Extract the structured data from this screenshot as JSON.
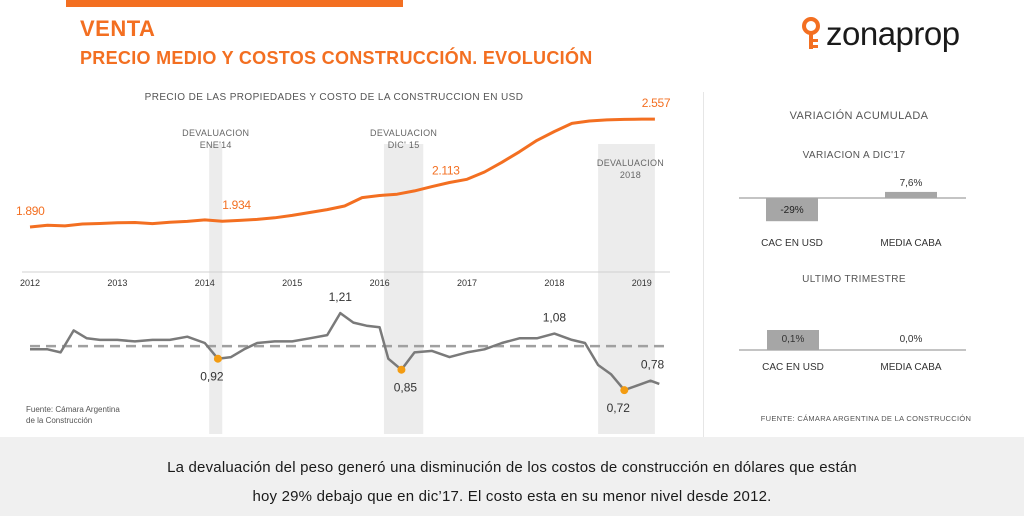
{
  "header": {
    "title": "VENTA",
    "subtitle": "PRECIO MEDIO Y COSTOS CONSTRUCCIÓN. EVOLUCIÓN"
  },
  "logo": {
    "text": "zonaprop",
    "icon": "zonaprop-key-icon",
    "color": "#f36f21"
  },
  "colors": {
    "accent": "#f36f21",
    "line_gray": "#7a7a7a",
    "band": "#ececec",
    "bar_gray": "#a6a6a6"
  },
  "chart_data": [
    {
      "type": "line",
      "title": "PRECIO DE LAS PROPIEDADES Y COSTO DE LA CONSTRUCCION EN USD",
      "x_ticks": [
        "2012",
        "2013",
        "2014",
        "2015",
        "2016",
        "2017",
        "2018",
        "2019"
      ],
      "xlim": [
        2012,
        2019.3
      ],
      "ylim": [
        1600,
        2650
      ],
      "grid": false,
      "series": [
        {
          "x": [
            2012.0,
            2012.2,
            2012.4,
            2012.6,
            2012.8,
            2013.0,
            2013.2,
            2013.4,
            2013.6,
            2013.8,
            2014.0,
            2014.2,
            2014.4,
            2014.6,
            2014.8,
            2015.0,
            2015.2,
            2015.4,
            2015.6,
            2015.8,
            2016.0,
            2016.2,
            2016.4,
            2016.6,
            2016.8,
            2017.0,
            2017.2,
            2017.4,
            2017.6,
            2017.8,
            2018.0,
            2018.2,
            2018.4,
            2018.6,
            2018.8,
            2019.0,
            2019.15
          ],
          "values": [
            1890,
            1901,
            1897,
            1909,
            1912,
            1917,
            1918,
            1911,
            1920,
            1925,
            1934,
            1926,
            1931,
            1937,
            1947,
            1962,
            1980,
            1998,
            2020,
            2072,
            2085,
            2093,
            2113,
            2140,
            2165,
            2185,
            2230,
            2290,
            2355,
            2425,
            2480,
            2530,
            2545,
            2552,
            2555,
            2557,
            2557
          ]
        }
      ],
      "data_labels": [
        {
          "x": 2012.0,
          "text": "1.890"
        },
        {
          "x": 2014.2,
          "text": "1.934"
        },
        {
          "x": 2016.6,
          "text": "2.113"
        },
        {
          "x": 2019.0,
          "text": "2.557"
        }
      ]
    },
    {
      "type": "line",
      "xlim": [
        2012,
        2019.3
      ],
      "ylim": [
        0.6,
        1.3
      ],
      "reference_line": 1.0,
      "series": [
        {
          "x": [
            2012.0,
            2012.2,
            2012.35,
            2012.5,
            2012.65,
            2012.8,
            2013.0,
            2013.2,
            2013.4,
            2013.6,
            2013.8,
            2014.0,
            2014.15,
            2014.3,
            2014.45,
            2014.6,
            2014.8,
            2015.0,
            2015.2,
            2015.4,
            2015.55,
            2015.7,
            2015.85,
            2016.0,
            2016.1,
            2016.25,
            2016.4,
            2016.6,
            2016.8,
            2017.0,
            2017.2,
            2017.4,
            2017.6,
            2017.8,
            2018.0,
            2018.2,
            2018.35,
            2018.5,
            2018.65,
            2018.8,
            2018.95,
            2019.1,
            2019.2
          ],
          "values": [
            0.98,
            0.98,
            0.96,
            1.1,
            1.05,
            1.04,
            1.04,
            1.03,
            1.04,
            1.04,
            1.06,
            1.02,
            0.92,
            0.93,
            0.98,
            1.02,
            1.03,
            1.03,
            1.05,
            1.07,
            1.21,
            1.15,
            1.13,
            1.12,
            0.92,
            0.85,
            0.96,
            0.97,
            0.93,
            0.96,
            0.98,
            1.02,
            1.05,
            1.05,
            1.08,
            1.04,
            1.02,
            0.88,
            0.82,
            0.72,
            0.75,
            0.78,
            0.76
          ]
        }
      ],
      "highlight_points": [
        {
          "x": 2014.15,
          "text": "0,92"
        },
        {
          "x": 2016.25,
          "text": "0,85"
        },
        {
          "x": 2018.8,
          "text": "0,72"
        }
      ],
      "data_labels": [
        {
          "x": 2015.55,
          "text": "1,21"
        },
        {
          "x": 2018.0,
          "text": "1,08"
        },
        {
          "x": 2019.1,
          "text": "0,78"
        }
      ],
      "source": [
        "Fuente: Cámara Argentina",
        "de la Construcción"
      ]
    }
  ],
  "bands": [
    {
      "label": [
        "DEVALUACION",
        "ENE'14"
      ],
      "from": 2014.05,
      "to": 2014.2
    },
    {
      "label": [
        "DEVALUACION",
        "DIC' 15"
      ],
      "from": 2016.05,
      "to": 2016.5
    },
    {
      "label": [
        "DEVALUACION",
        "2018"
      ],
      "from": 2018.5,
      "to": 2019.15
    }
  ],
  "right": {
    "heading": "VARIACIÓN ACUMULADA",
    "sections": [
      {
        "title": "VARIACION A DIC'17",
        "bars": [
          {
            "label": "CAC EN USD",
            "value": -29,
            "text": "-29%"
          },
          {
            "label": "MEDIA CABA",
            "value": 7.6,
            "text": "7,6%"
          }
        ]
      },
      {
        "title": "ULTIMO TRIMESTRE",
        "bars": [
          {
            "label": "CAC EN USD",
            "value": 0.1,
            "text": "0,1%"
          },
          {
            "label": "MEDIA CABA",
            "value": 0.0,
            "text": "0,0%"
          }
        ]
      }
    ],
    "source": "FUENTE: CÁMARA ARGENTINA DE LA CONSTRUCCIÓN"
  },
  "caption": {
    "line1": "La devaluación del peso generó una disminución de los costos de construcción en dólares que están",
    "line2": "hoy 29% debajo que en dic’17. El costo esta en su menor nivel desde 2012."
  }
}
